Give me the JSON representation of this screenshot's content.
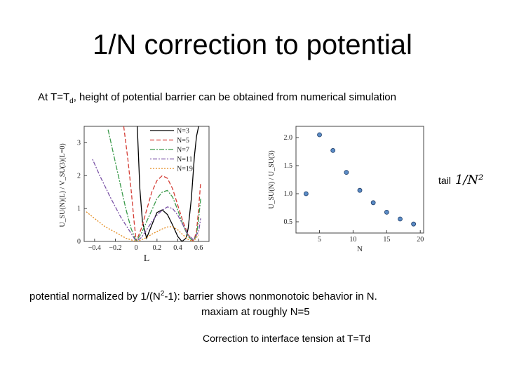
{
  "slide": {
    "title": "1/N correction to potential",
    "subtitle_pre": "At T=T",
    "subtitle_sub": "d",
    "subtitle_post": ", height of potential barrier can be obtained from numerical simulation",
    "tail_label": "tail",
    "tail_formula": "1/N²",
    "note1_pre": "potential normalized by 1/(N",
    "note1_sup": "2",
    "note1_post": "-1): barrier shows nonmonotoic behavior in N.",
    "note2": "maxiam at roughly N=5",
    "note3": "Correction to interface tension at T=Td"
  },
  "chart_data": [
    {
      "type": "line",
      "xlabel": "L",
      "ylabel": "U_SU(N)(L) / V_SU(3)(L=0)",
      "xlim": [
        -0.5,
        0.7
      ],
      "ylim": [
        0,
        3.5
      ],
      "xticks": [
        "-0.4",
        "-0.2",
        "0",
        "0.2",
        "0.4",
        "0.6"
      ],
      "yticks": [
        "0",
        "1",
        "2",
        "3"
      ],
      "legend_position": "top-center",
      "series": [
        {
          "name": "N=3",
          "color": "#000000",
          "dash": "",
          "x": [
            0.01,
            0.035,
            0.06,
            0.1,
            0.15,
            0.2,
            0.25,
            0.3,
            0.35,
            0.4,
            0.44,
            0.48,
            0.5,
            0.53,
            0.56,
            0.58,
            0.6
          ],
          "y": [
            3.5,
            1.6,
            0.6,
            0.1,
            0.5,
            0.88,
            0.96,
            0.82,
            0.5,
            0.15,
            0.0,
            0.1,
            0.4,
            1.3,
            2.6,
            3.2,
            3.5
          ]
        },
        {
          "name": "N=5",
          "color": "#d43c34",
          "dash": "6,3",
          "x": [
            -0.12,
            -0.08,
            -0.05,
            -0.02,
            0,
            0.05,
            0.1,
            0.15,
            0.2,
            0.25,
            0.3,
            0.35,
            0.4,
            0.45,
            0.5,
            0.55,
            0.58,
            0.6,
            0.62
          ],
          "y": [
            3.5,
            2.5,
            1.6,
            0.6,
            0.0,
            0.4,
            0.95,
            1.5,
            1.85,
            2.0,
            1.92,
            1.6,
            1.1,
            0.6,
            0.2,
            0.0,
            0.3,
            1.0,
            1.8
          ]
        },
        {
          "name": "N=7",
          "color": "#3a9a4a",
          "dash": "7,2,2,2",
          "x": [
            -0.27,
            -0.2,
            -0.15,
            -0.1,
            -0.05,
            0,
            0.05,
            0.1,
            0.15,
            0.2,
            0.25,
            0.3,
            0.35,
            0.4,
            0.45,
            0.5,
            0.55,
            0.58,
            0.6,
            0.62
          ],
          "y": [
            3.4,
            2.4,
            1.7,
            1.0,
            0.4,
            0.0,
            0.25,
            0.6,
            0.95,
            1.3,
            1.5,
            1.55,
            1.35,
            0.95,
            0.5,
            0.15,
            0.0,
            0.2,
            0.7,
            1.3
          ]
        },
        {
          "name": "N=11",
          "color": "#7a52a6",
          "dash": "2,2,6,2",
          "x": [
            -0.42,
            -0.35,
            -0.25,
            -0.15,
            -0.05,
            0,
            0.05,
            0.1,
            0.15,
            0.2,
            0.25,
            0.3,
            0.35,
            0.4,
            0.45,
            0.5,
            0.55,
            0.6,
            0.62
          ],
          "y": [
            2.5,
            2.0,
            1.35,
            0.75,
            0.25,
            0.0,
            0.12,
            0.35,
            0.6,
            0.8,
            0.95,
            1.05,
            1.0,
            0.8,
            0.5,
            0.2,
            0.05,
            0.3,
            0.7
          ]
        },
        {
          "name": "N=19",
          "color": "#e48a1c",
          "dash": "2,2",
          "x": [
            -0.48,
            -0.4,
            -0.3,
            -0.2,
            -0.1,
            0,
            0.05,
            0.1,
            0.15,
            0.2,
            0.25,
            0.3,
            0.35,
            0.4,
            0.45,
            0.5,
            0.55,
            0.6
          ],
          "y": [
            0.9,
            0.7,
            0.45,
            0.28,
            0.1,
            0.0,
            0.05,
            0.12,
            0.22,
            0.3,
            0.38,
            0.44,
            0.45,
            0.35,
            0.2,
            0.06,
            0.0,
            0.2
          ]
        }
      ]
    },
    {
      "type": "scatter",
      "xlabel": "N",
      "ylabel": "U_SU(N) / U_SU(3)",
      "xlim": [
        1.5,
        20.5
      ],
      "ylim": [
        0.3,
        2.2
      ],
      "xticks": [
        "5",
        "10",
        "15",
        "20"
      ],
      "yticks": [
        "0.5",
        "1.0",
        "1.5",
        "2.0"
      ],
      "point_color": "#5b8cc6",
      "series": [
        {
          "x": [
            3,
            5,
            7,
            9,
            11,
            13,
            15,
            17,
            19
          ],
          "y": [
            1.0,
            2.05,
            1.77,
            1.38,
            1.06,
            0.84,
            0.67,
            0.55,
            0.46
          ]
        }
      ]
    }
  ]
}
